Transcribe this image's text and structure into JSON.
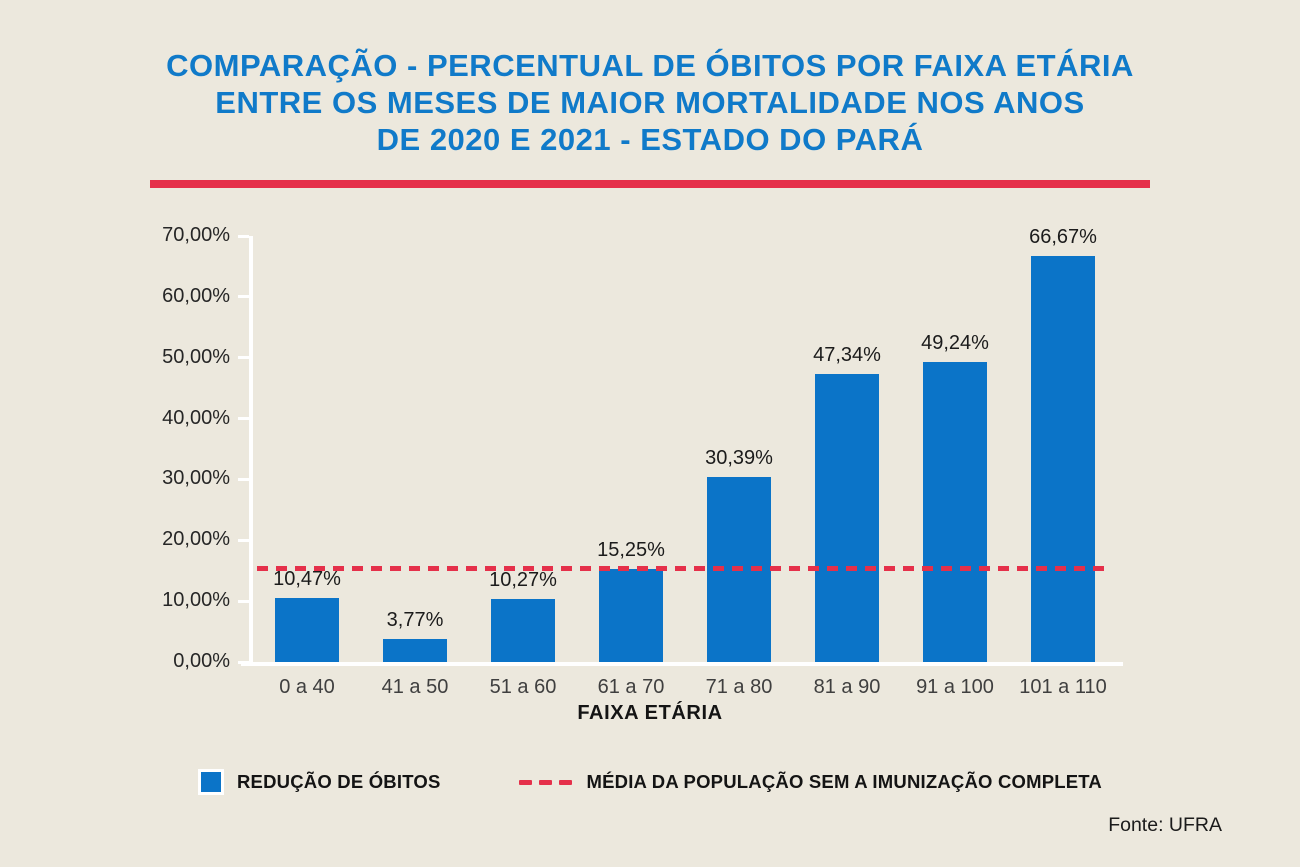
{
  "colors": {
    "background": "#ECE8DD",
    "title_blue": "#107AC9",
    "bar_blue": "#0B74C8",
    "accent_red": "#E5304A",
    "axis_white": "#FFFFFF"
  },
  "title": {
    "line1": "COMPARAÇÃO - PERCENTUAL DE ÓBITOS POR FAIXA ETÁRIA",
    "line2": "ENTRE OS MESES DE MAIOR MORTALIDADE NOS ANOS",
    "line3": "DE 2020 E 2021 - ESTADO DO PARÁ"
  },
  "chart_data": {
    "type": "bar",
    "title": "COMPARAÇÃO - PERCENTUAL DE ÓBITOS POR FAIXA ETÁRIA ENTRE OS MESES DE MAIOR MORTALIDADE NOS ANOS DE 2020 E 2021 - ESTADO DO PARÁ",
    "categories": [
      "0 a 40",
      "41 a 50",
      "51 a 60",
      "61 a 70",
      "71 a 80",
      "81 a 90",
      "91 a 100",
      "101 a 110"
    ],
    "values": [
      10.47,
      3.77,
      10.27,
      15.25,
      30.39,
      47.34,
      49.24,
      66.67
    ],
    "value_labels": [
      "10,47%",
      "3,77%",
      "10,27%",
      "15,25%",
      "30,39%",
      "47,34%",
      "49,24%",
      "66,67%"
    ],
    "series_name": "REDUÇÃO DE ÓBITOS",
    "xlabel": "FAIXA ETÁRIA",
    "ylabel": "",
    "ylim": [
      0,
      70
    ],
    "ytick_labels": [
      "0,00%",
      "10,00%",
      "20,00%",
      "30,00%",
      "40,00%",
      "50,00%",
      "60,00%",
      "70,00%"
    ],
    "grid": false,
    "legend_position": "bottom",
    "reference_line": {
      "value": 15.3,
      "style": "dashed",
      "label": "MÉDIA DA POPULAÇÃO SEM A IMUNIZAÇÃO COMPLETA"
    }
  },
  "legend": {
    "bars_label": "REDUÇÃO DE ÓBITOS",
    "reference_label": "MÉDIA DA POPULAÇÃO SEM A IMUNIZAÇÃO COMPLETA"
  },
  "source": {
    "label": "Fonte: UFRA"
  }
}
